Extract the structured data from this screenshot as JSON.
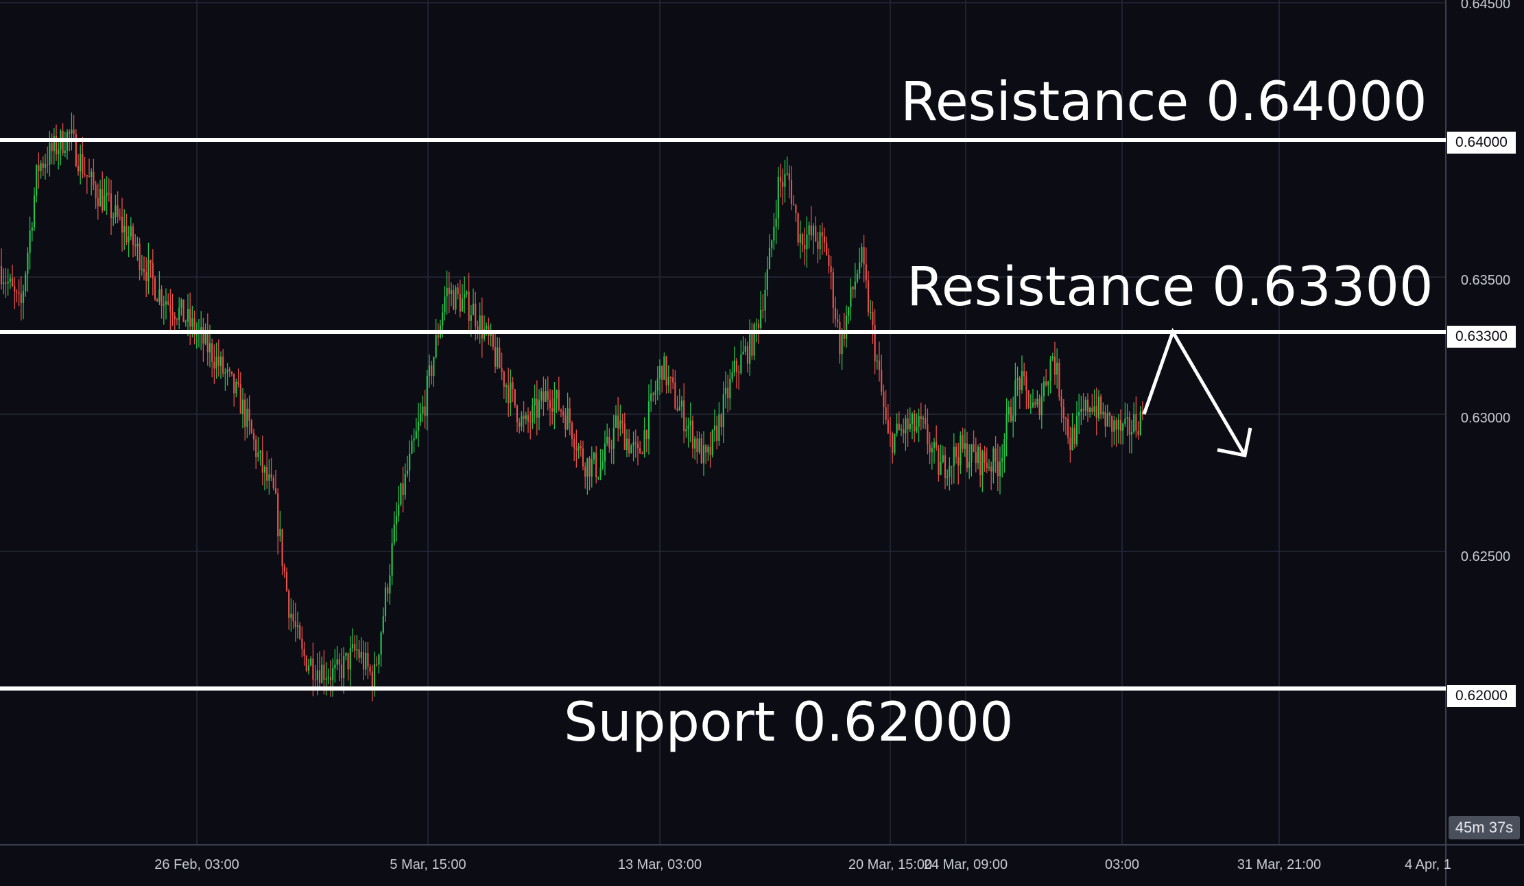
{
  "chart_data": {
    "type": "candlestick",
    "x_tick_labels": [
      "26 Feb, 03:00",
      "5 Mar, 15:00",
      "13 Mar, 03:00",
      "20 Mar, 15:00",
      "24 Mar, 09:00",
      "03:00",
      "31 Mar, 21:00",
      "4 Apr, 1"
    ],
    "y_tick_labels": [
      "0.64500",
      "0.63500",
      "0.63000",
      "0.62500"
    ],
    "ylim": [
      0.6143,
      0.6451
    ],
    "grid": true,
    "levels": [
      {
        "value": 0.64,
        "label": "0.64000",
        "annotation": "Resistance 0.64000"
      },
      {
        "value": 0.633,
        "label": "0.63300",
        "annotation": "Resistance 0.63300"
      },
      {
        "value": 0.62,
        "label": "0.62000",
        "annotation": "Support 0.62000"
      }
    ],
    "price_path": [
      [
        0,
        0.6354
      ],
      [
        30,
        0.6338
      ],
      [
        55,
        0.639
      ],
      [
        80,
        0.6397
      ],
      [
        100,
        0.6402
      ],
      [
        130,
        0.6385
      ],
      [
        160,
        0.6375
      ],
      [
        195,
        0.6362
      ],
      [
        230,
        0.6345
      ],
      [
        270,
        0.6335
      ],
      [
        310,
        0.6322
      ],
      [
        350,
        0.6305
      ],
      [
        385,
        0.6278
      ],
      [
        400,
        0.627
      ],
      [
        420,
        0.6232
      ],
      [
        440,
        0.6212
      ],
      [
        460,
        0.6208
      ],
      [
        490,
        0.6205
      ],
      [
        520,
        0.6214
      ],
      [
        545,
        0.6203
      ],
      [
        580,
        0.6265
      ],
      [
        620,
        0.6305
      ],
      [
        650,
        0.6345
      ],
      [
        690,
        0.6338
      ],
      [
        715,
        0.6325
      ],
      [
        740,
        0.631
      ],
      [
        765,
        0.6295
      ],
      [
        800,
        0.6308
      ],
      [
        830,
        0.6298
      ],
      [
        850,
        0.6283
      ],
      [
        875,
        0.628
      ],
      [
        900,
        0.6297
      ],
      [
        930,
        0.6284
      ],
      [
        965,
        0.6318
      ],
      [
        985,
        0.6305
      ],
      [
        1005,
        0.6295
      ],
      [
        1030,
        0.6282
      ],
      [
        1070,
        0.6315
      ],
      [
        1100,
        0.6328
      ],
      [
        1120,
        0.6352
      ],
      [
        1135,
        0.6384
      ],
      [
        1150,
        0.6386
      ],
      [
        1165,
        0.6365
      ],
      [
        1185,
        0.6365
      ],
      [
        1205,
        0.636
      ],
      [
        1225,
        0.6325
      ],
      [
        1255,
        0.6358
      ],
      [
        1275,
        0.6325
      ],
      [
        1295,
        0.629
      ],
      [
        1320,
        0.6295
      ],
      [
        1345,
        0.6295
      ],
      [
        1370,
        0.628
      ],
      [
        1400,
        0.6287
      ],
      [
        1430,
        0.6283
      ],
      [
        1455,
        0.6282
      ],
      [
        1485,
        0.6313
      ],
      [
        1510,
        0.63
      ],
      [
        1535,
        0.6322
      ],
      [
        1560,
        0.629
      ],
      [
        1590,
        0.6305
      ],
      [
        1615,
        0.6297
      ],
      [
        1640,
        0.6293
      ],
      [
        1668,
        0.63
      ]
    ],
    "projection": [
      [
        1668,
        0.63
      ],
      [
        1710,
        0.633
      ],
      [
        1815,
        0.6285
      ]
    ]
  },
  "axis": {
    "countdown": "45m 37s"
  }
}
